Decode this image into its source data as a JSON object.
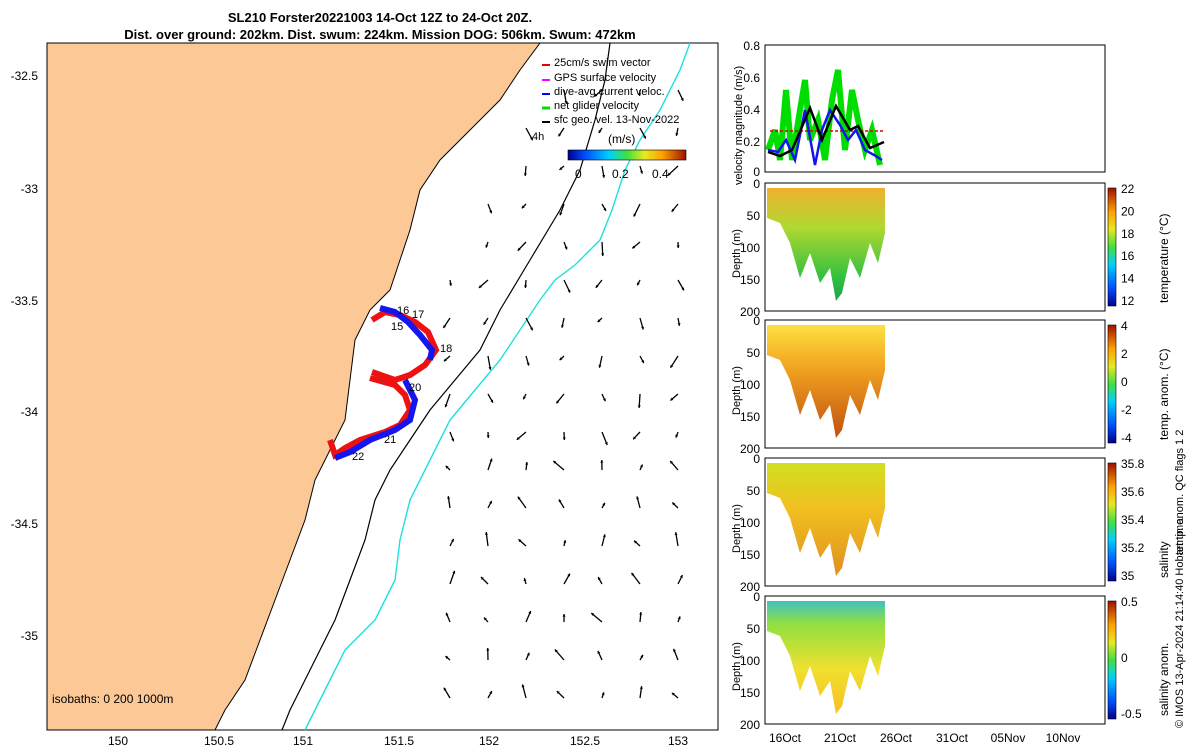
{
  "title_line1": "SL210 Forster20221003 14-Oct 12Z to 24-Oct 20Z.",
  "title_line2": "Dist. over ground: 202km. Dist. swum: 224km. Mission DOG: 506km. Swum: 472km",
  "map": {
    "lon_ticks": [
      "150",
      "150.5",
      "151",
      "151.5",
      "152",
      "152.5",
      "153"
    ],
    "lat_ticks": [
      "-32.5",
      "-33",
      "-33.5",
      "-34",
      "-34.5",
      "-35"
    ],
    "isobaths_label": "isobaths: 0   200  1000m",
    "day_labels": [
      "16",
      "17",
      "15",
      "18",
      "20",
      "21",
      "22"
    ],
    "time_label": "4h",
    "legend": [
      {
        "label": "25cm/s swim vector",
        "color": "#e00000"
      },
      {
        "label": "GPS surface velocity",
        "color": "#ff00ff"
      },
      {
        "label": "dive-avg current veloc.",
        "color": "#0000ff"
      },
      {
        "label": "net glider velocity",
        "color": "#00dd00"
      },
      {
        "label": "sfc geo. vel. 13-Nov-2022",
        "color": "#000000"
      }
    ],
    "colorbar": {
      "title": "(m/s)",
      "ticks": [
        "0",
        "0.2",
        "0.4"
      ]
    },
    "colors": {
      "land": "#fbc896",
      "isobath_200": "#000000",
      "isobath_1000": "#1ee0e0",
      "track_red": "#ee1111",
      "track_blue": "#1515ee"
    }
  },
  "panels": [
    {
      "ylabel": "velocity magnitude (m/s)",
      "yticks": [
        "0.8",
        "0.6",
        "0.4",
        "0.2",
        "0"
      ]
    },
    {
      "ylabel": "Depth (m)",
      "yticks": [
        "0",
        "50",
        "100",
        "150",
        "200"
      ],
      "cb_label": "temperature (°C)",
      "cb_ticks": [
        "22",
        "20",
        "18",
        "16",
        "14",
        "12"
      ]
    },
    {
      "ylabel": "Depth (m)",
      "yticks": [
        "0",
        "50",
        "100",
        "150",
        "200"
      ],
      "cb_label": "temp. anom. (°C)",
      "cb_ticks": [
        "4",
        "2",
        "0",
        "-2",
        "-4"
      ]
    },
    {
      "ylabel": "Depth (m)",
      "yticks": [
        "0",
        "50",
        "100",
        "150",
        "200"
      ],
      "cb_label": "salinity",
      "cb_ticks": [
        "35.8",
        "35.6",
        "35.4",
        "35.2",
        "35"
      ]
    },
    {
      "ylabel": "Depth (m)",
      "yticks": [
        "0",
        "50",
        "100",
        "150",
        "200"
      ],
      "cb_label": "salinity anom.",
      "cb_ticks": [
        "0.5",
        "0",
        "-0.5"
      ]
    }
  ],
  "time_ticks": [
    "16Oct",
    "21Oct",
    "26Oct",
    "31Oct",
    "05Nov",
    "10Nov"
  ],
  "side_label": "temp. anom. QC flags 1  2",
  "copyright": "© IMOS 13-Apr-2024 21:14:40 Hobart time."
}
